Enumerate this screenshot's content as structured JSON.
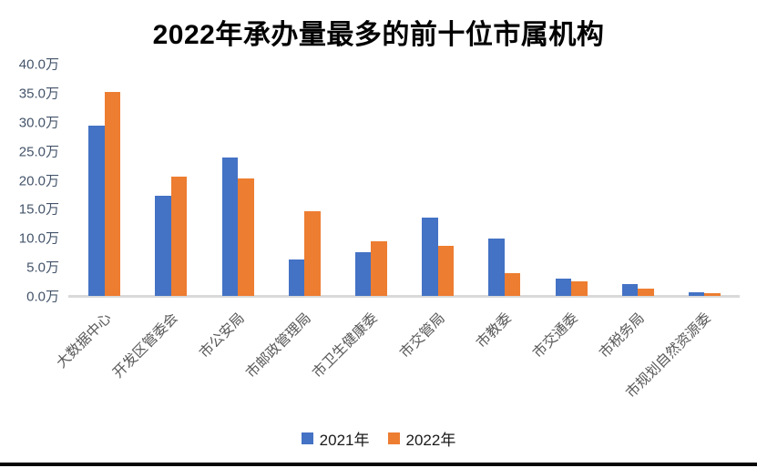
{
  "chart_data": {
    "type": "bar",
    "title": "2022年承办量最多的前十位市属机构",
    "categories": [
      "大数据中心",
      "开发区管委会",
      "市公安局",
      "市邮政管理局",
      "市卫生健康委",
      "市交管局",
      "市教委",
      "市交通委",
      "市税务局",
      "市规划自然资源委"
    ],
    "series": [
      {
        "name": "2021年",
        "color": "#4472C4",
        "values": [
          29.3,
          17.2,
          23.9,
          6.2,
          7.6,
          13.5,
          9.9,
          3.0,
          2.0,
          0.6
        ]
      },
      {
        "name": "2022年",
        "color": "#ED7D31",
        "values": [
          35.1,
          20.5,
          20.3,
          14.6,
          9.4,
          8.6,
          4.0,
          2.5,
          1.3,
          0.4
        ]
      }
    ],
    "y_ticks": [
      "40.0万",
      "35.0万",
      "30.0万",
      "25.0万",
      "20.0万",
      "15.0万",
      "10.0万",
      "5.0万",
      "0.0万"
    ],
    "ylim": [
      0,
      40
    ],
    "y_unit": "万",
    "grid": false,
    "legend_position": "bottom",
    "colors": {
      "axis_line": "#D9D9D9",
      "y_tick_text": "#44546A",
      "x_tick_text": "#595959",
      "title_text": "#000000"
    }
  }
}
